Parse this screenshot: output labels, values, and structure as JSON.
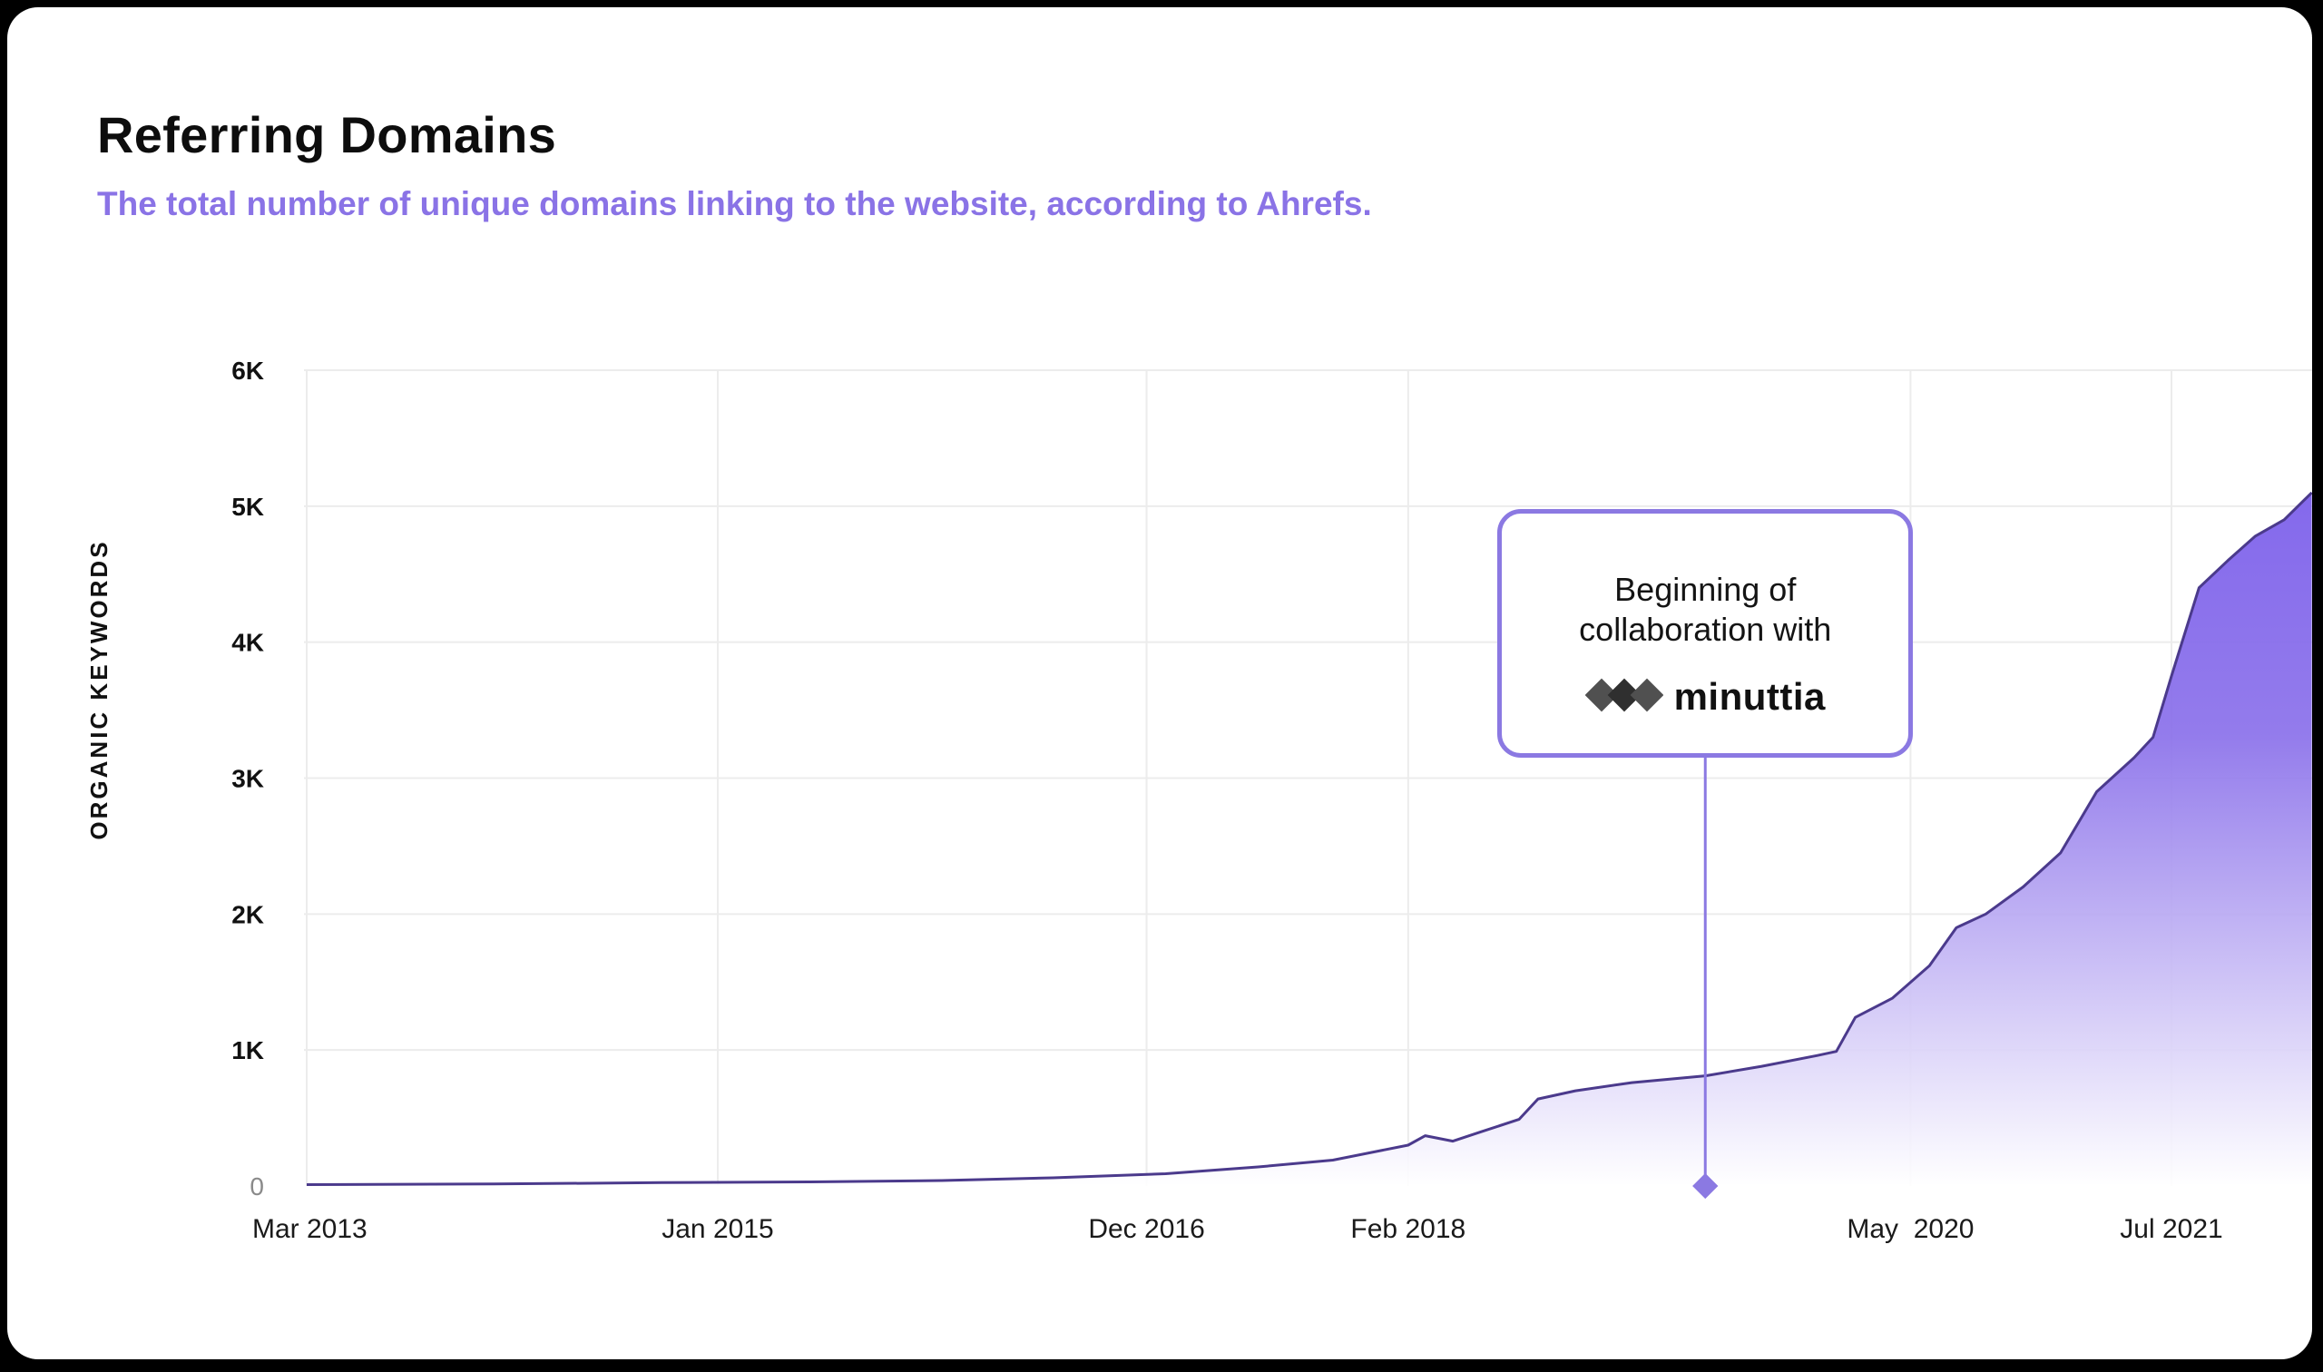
{
  "header": {
    "title": "Referring Domains",
    "subtitle": "The total number of unique domains linking to the website, according to Ahrefs."
  },
  "colors": {
    "accent": "#8a73e6",
    "line": "#4b3a8c",
    "area_top": "#8469ec",
    "area_bottom": "#ffffff"
  },
  "annotation": {
    "line1": "Beginning of",
    "line2": "collaboration with",
    "brand": "minuttia",
    "date": "2019-06-01",
    "icon": "minuttia-logo-icon"
  },
  "chart_data": {
    "type": "area",
    "ylabel": "ORGANIC KEYWORDS",
    "xlabel": "",
    "ylim": [
      0,
      6000
    ],
    "y_ticks": [
      {
        "value": 0,
        "label": "0"
      },
      {
        "value": 1000,
        "label": "1K"
      },
      {
        "value": 2000,
        "label": "2K"
      },
      {
        "value": 3000,
        "label": "3K"
      },
      {
        "value": 4000,
        "label": "4K"
      },
      {
        "value": 5000,
        "label": "5K"
      },
      {
        "value": 6000,
        "label": "6K"
      }
    ],
    "x_ticks": [
      {
        "date": "2013-03-01",
        "label": "Mar 2013"
      },
      {
        "date": "2015-01-01",
        "label": "Jan 2015"
      },
      {
        "date": "2016-12-01",
        "label": "Dec 2016"
      },
      {
        "date": "2018-02-01",
        "label": "Feb 2018"
      },
      {
        "date": "2020-05-01",
        "label": "May  2020"
      },
      {
        "date": "2021-07-01",
        "label": "Jul 2021"
      }
    ],
    "grid": true,
    "legend": "none",
    "series": [
      {
        "values": [
          [
            "2013-03-01",
            10
          ],
          [
            "2014-01-01",
            15
          ],
          [
            "2014-10-01",
            25
          ],
          [
            "2015-06-01",
            30
          ],
          [
            "2016-01-01",
            40
          ],
          [
            "2016-07-01",
            60
          ],
          [
            "2017-01-01",
            90
          ],
          [
            "2017-06-01",
            140
          ],
          [
            "2017-10-01",
            190
          ],
          [
            "2018-02-01",
            300
          ],
          [
            "2018-03-01",
            370
          ],
          [
            "2018-04-15",
            330
          ],
          [
            "2018-06-01",
            400
          ],
          [
            "2018-08-01",
            490
          ],
          [
            "2018-09-01",
            640
          ],
          [
            "2018-11-01",
            700
          ],
          [
            "2019-02-01",
            760
          ],
          [
            "2019-06-01",
            810
          ],
          [
            "2019-09-01",
            880
          ],
          [
            "2019-12-01",
            960
          ],
          [
            "2020-01-01",
            990
          ],
          [
            "2020-02-01",
            1240
          ],
          [
            "2020-04-01",
            1380
          ],
          [
            "2020-06-01",
            1620
          ],
          [
            "2020-07-15",
            1900
          ],
          [
            "2020-09-01",
            2000
          ],
          [
            "2020-11-01",
            2200
          ],
          [
            "2021-01-01",
            2450
          ],
          [
            "2021-03-01",
            2900
          ],
          [
            "2021-05-01",
            3150
          ],
          [
            "2021-06-01",
            3300
          ],
          [
            "2021-07-01",
            3750
          ],
          [
            "2021-08-15",
            4400
          ],
          [
            "2021-10-01",
            4600
          ],
          [
            "2021-11-15",
            4780
          ],
          [
            "2022-01-01",
            4900
          ],
          [
            "2022-02-15",
            5100
          ]
        ]
      }
    ]
  }
}
